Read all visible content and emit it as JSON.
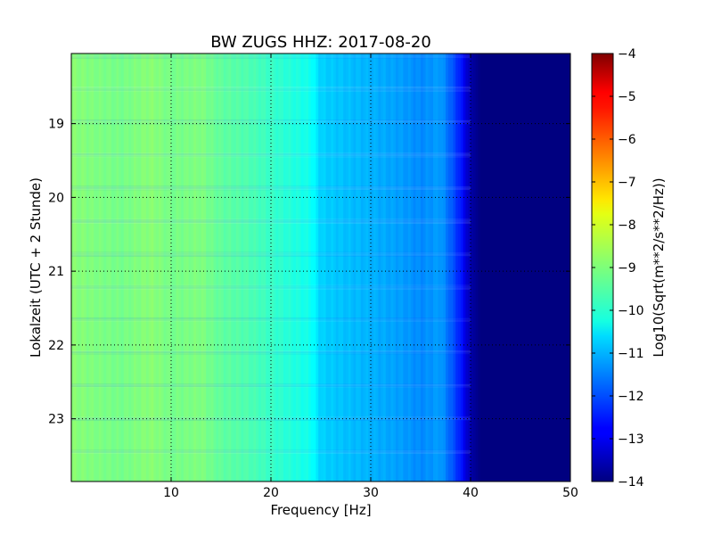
{
  "chart_data": {
    "type": "heatmap",
    "title": "BW ZUGS HHZ: 2017-08-20",
    "xlabel": "Frequency [Hz]",
    "ylabel": "Lokalzeit (UTC + 2 Stunde)",
    "xlim": [
      0,
      50
    ],
    "ylim": [
      18.05,
      23.85
    ],
    "y_inverted": true,
    "x_ticks": [
      10,
      20,
      30,
      40,
      50
    ],
    "y_ticks": [
      19,
      20,
      21,
      22,
      23
    ],
    "grid": true,
    "colormap": "jet",
    "colorbar": {
      "label": "Log10(Sqrt(m**2/s**2/Hz))",
      "range": [
        -14,
        -4
      ],
      "ticks": [
        -4,
        -5,
        -6,
        -7,
        -8,
        -9,
        -10,
        -11,
        -12,
        -13,
        -14
      ]
    },
    "frequency_profile": {
      "frequency_hz": [
        0,
        2,
        5,
        8,
        10,
        13,
        15,
        18,
        20,
        22,
        24,
        25,
        28,
        30,
        33,
        35,
        37,
        38,
        39,
        40,
        41,
        45,
        50
      ],
      "log10_amplitude": [
        -8.9,
        -9.0,
        -9.1,
        -8.9,
        -9.1,
        -9.0,
        -9.3,
        -9.5,
        -9.7,
        -9.9,
        -10.1,
        -10.7,
        -10.9,
        -11.0,
        -11.2,
        -11.4,
        -11.2,
        -11.8,
        -12.5,
        -13.6,
        -14.0,
        -14.0,
        -14.0
      ]
    }
  }
}
